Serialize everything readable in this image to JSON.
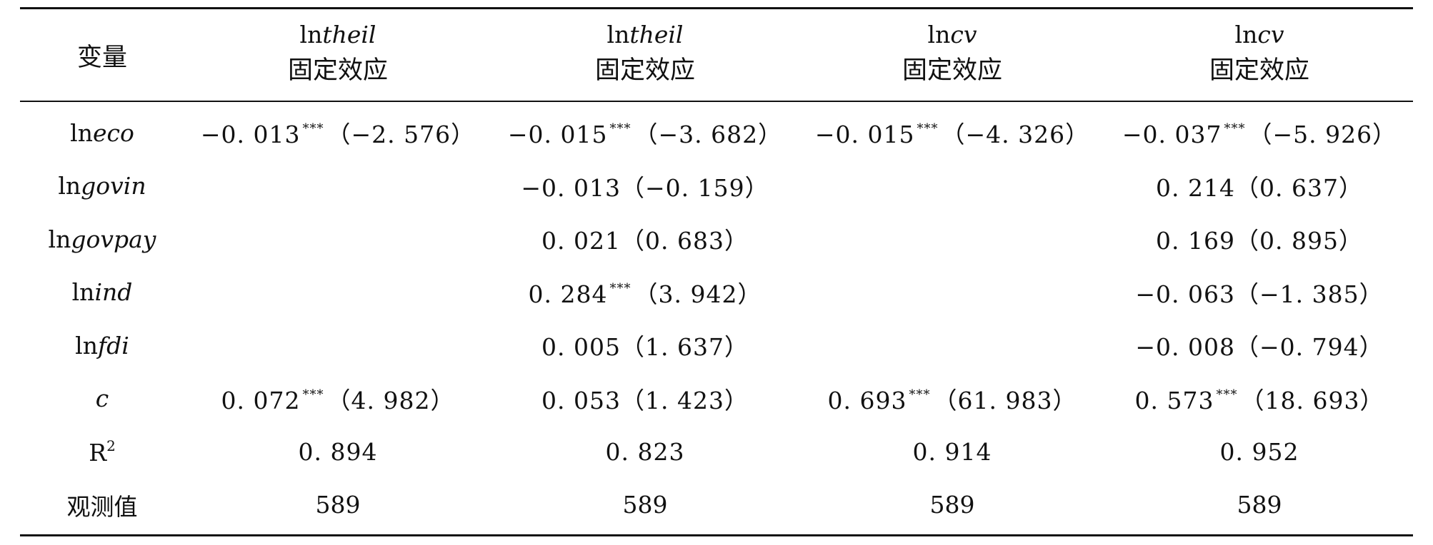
{
  "table": {
    "header": {
      "variable_label": "变量",
      "columns": [
        {
          "dep_prefix": "ln",
          "dep_italic": "theil",
          "method": "固定效应"
        },
        {
          "dep_prefix": "ln",
          "dep_italic": "theil",
          "method": "固定效应"
        },
        {
          "dep_prefix": "ln",
          "dep_italic": "cv",
          "method": "固定效应"
        },
        {
          "dep_prefix": "ln",
          "dep_italic": "cv",
          "method": "固定效应"
        }
      ]
    },
    "rows": [
      {
        "var_prefix": "ln",
        "var_italic": "eco",
        "cells": [
          {
            "coef": "−0. 013",
            "stars": "***",
            "t": "（−2. 576）"
          },
          {
            "coef": "−0. 015",
            "stars": "***",
            "t": "（−3. 682）"
          },
          {
            "coef": "−0. 015",
            "stars": "***",
            "t": "（−4. 326）"
          },
          {
            "coef": "−0. 037",
            "stars": "***",
            "t": "（−5. 926）"
          }
        ]
      },
      {
        "var_prefix": "ln",
        "var_italic": "govin",
        "cells": [
          {
            "coef": "",
            "stars": "",
            "t": ""
          },
          {
            "coef": "−0. 013",
            "stars": "",
            "t": "（−0. 159）"
          },
          {
            "coef": "",
            "stars": "",
            "t": ""
          },
          {
            "coef": "0. 214",
            "stars": "",
            "t": "（0. 637）"
          }
        ]
      },
      {
        "var_prefix": "ln",
        "var_italic": "govpay",
        "cells": [
          {
            "coef": "",
            "stars": "",
            "t": ""
          },
          {
            "coef": "0. 021",
            "stars": "",
            "t": "（0. 683）"
          },
          {
            "coef": "",
            "stars": "",
            "t": ""
          },
          {
            "coef": "0. 169",
            "stars": "",
            "t": "（0. 895）"
          }
        ]
      },
      {
        "var_prefix": "ln",
        "var_italic": "ind",
        "cells": [
          {
            "coef": "",
            "stars": "",
            "t": ""
          },
          {
            "coef": "0. 284",
            "stars": "***",
            "t": "（3. 942）"
          },
          {
            "coef": "",
            "stars": "",
            "t": ""
          },
          {
            "coef": "−0. 063",
            "stars": "",
            "t": "（−1. 385）"
          }
        ]
      },
      {
        "var_prefix": "ln",
        "var_italic": "fdi",
        "cells": [
          {
            "coef": "",
            "stars": "",
            "t": ""
          },
          {
            "coef": "0. 005",
            "stars": "",
            "t": "（1. 637）"
          },
          {
            "coef": "",
            "stars": "",
            "t": ""
          },
          {
            "coef": "−0. 008",
            "stars": "",
            "t": "（−0. 794）"
          }
        ]
      },
      {
        "var_prefix": "",
        "var_italic": "c",
        "cells": [
          {
            "coef": "0. 072",
            "stars": "***",
            "t": "（4. 982）"
          },
          {
            "coef": "0. 053",
            "stars": "",
            "t": "（1. 423）"
          },
          {
            "coef": "0. 693",
            "stars": "***",
            "t": "（61. 983）"
          },
          {
            "coef": "0. 573",
            "stars": "***",
            "t": "（18. 693）"
          }
        ]
      }
    ],
    "r2_row": {
      "label": "R",
      "label_sup": "2",
      "values": [
        "0. 894",
        "0. 823",
        "0. 914",
        "0. 952"
      ]
    },
    "obs_row": {
      "label": "观测值",
      "values": [
        "589",
        "589",
        "589",
        "589"
      ]
    }
  }
}
